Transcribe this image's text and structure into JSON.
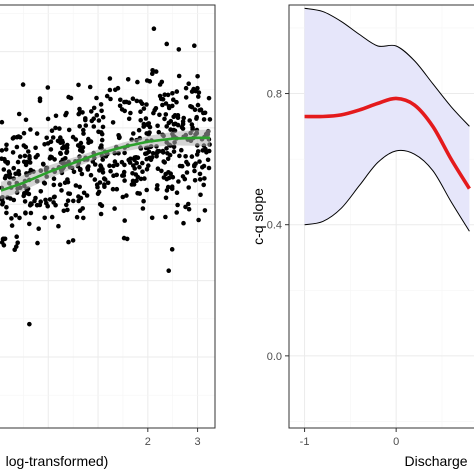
{
  "colors": {
    "points": "#000000",
    "left_smooth": "#2ca02c",
    "left_band": "#b0b0b0",
    "right_line": "#e41a1c",
    "right_band_fill": "#e6e6fa",
    "right_band_edge": "#000000",
    "grid_major": "#ebebeb",
    "grid_minor": "#f5f5f5",
    "panel_border": "#333333"
  },
  "chart_data": [
    {
      "type": "scatter",
      "title": "",
      "xlabel": "log-transformed)",
      "ylabel": "",
      "xlim": [
        -0.97,
        3.35
      ],
      "ylim": [
        -2.93,
        2.61
      ],
      "xticks": [
        2,
        3
      ],
      "yticks": [],
      "grid": true,
      "smooth": {
        "x": [
          -0.95,
          -0.5,
          0.0,
          0.5,
          1.0,
          1.5,
          2.0,
          2.5,
          3.0,
          3.25
        ],
        "y": [
          0.18,
          0.28,
          0.42,
          0.54,
          0.66,
          0.75,
          0.82,
          0.86,
          0.87,
          0.87
        ]
      },
      "outliers": [
        {
          "x": 2.42,
          "y": -0.87
        },
        {
          "x": 2.49,
          "y": -0.59
        },
        {
          "x": -0.38,
          "y": -1.57
        },
        {
          "x": 2.63,
          "y": 1.68
        },
        {
          "x": 2.38,
          "y": 2.1
        },
        {
          "x": 3.23,
          "y": 1.39
        },
        {
          "x": 2.09,
          "y": 1.71
        },
        {
          "x": 2.04,
          "y": 1.61
        }
      ],
      "n_points": 600
    },
    {
      "type": "line",
      "title": "",
      "xlabel": "Discharge",
      "ylabel": "c-q slope",
      "xlim": [
        -1.17,
        0.85
      ],
      "ylim": [
        -0.22,
        1.07
      ],
      "xticks": [
        -1,
        0
      ],
      "yticks": [
        0.0,
        0.4,
        0.8
      ],
      "ytick_labels": [
        "0.0",
        "0.4",
        "0.8"
      ],
      "grid": true,
      "series": [
        {
          "x": [
            -1.0,
            -0.8,
            -0.6,
            -0.4,
            -0.2,
            0.0,
            0.2,
            0.4,
            0.6,
            0.8
          ],
          "y": [
            0.73,
            0.73,
            0.735,
            0.75,
            0.77,
            0.785,
            0.765,
            0.7,
            0.6,
            0.51
          ]
        }
      ],
      "band": {
        "x": [
          -1.0,
          -0.8,
          -0.6,
          -0.4,
          -0.2,
          0.0,
          0.2,
          0.4,
          0.6,
          0.8
        ],
        "upper": [
          1.06,
          1.05,
          1.02,
          0.98,
          0.945,
          0.945,
          0.9,
          0.83,
          0.76,
          0.7
        ],
        "lower": [
          0.4,
          0.41,
          0.45,
          0.52,
          0.59,
          0.625,
          0.615,
          0.565,
          0.47,
          0.38
        ]
      }
    }
  ]
}
